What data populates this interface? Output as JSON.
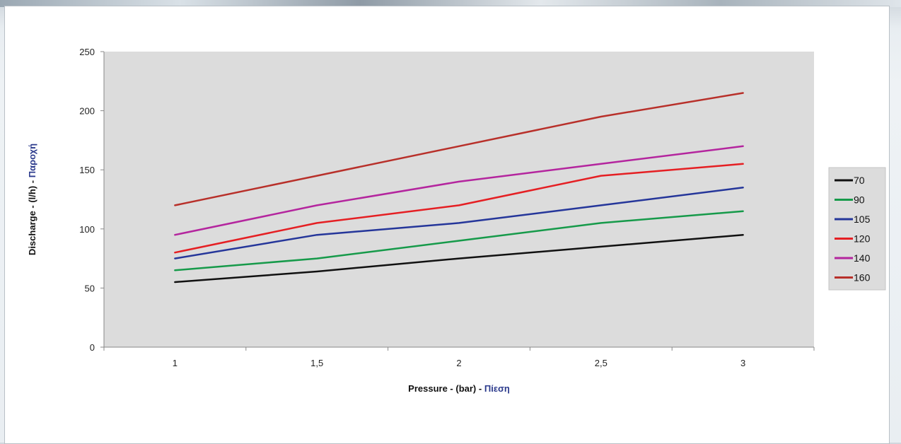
{
  "chart_data": {
    "type": "line",
    "title": "",
    "x": [
      "1",
      "1,5",
      "2",
      "2,5",
      "3"
    ],
    "xlabel": {
      "text": "Pressure - (bar) - ",
      "accent": "Πίεση"
    },
    "ylabel": {
      "text": "Discharge - (l/h) - ",
      "accent": "Παροχή"
    },
    "ylim": [
      0,
      250
    ],
    "yticks": [
      "0",
      "50",
      "100",
      "150",
      "200",
      "250"
    ],
    "grid": false,
    "plot_background": "#dcdcdc",
    "legend_position": "right",
    "accent_color": "#2b3a8c",
    "series": [
      {
        "name": "70",
        "color": "#111111",
        "values": [
          55,
          64,
          75,
          85,
          95
        ]
      },
      {
        "name": "90",
        "color": "#169a4a",
        "values": [
          65,
          75,
          90,
          105,
          115
        ]
      },
      {
        "name": "105",
        "color": "#25369a",
        "values": [
          75,
          95,
          105,
          120,
          135
        ]
      },
      {
        "name": "120",
        "color": "#e51f23",
        "values": [
          80,
          105,
          120,
          145,
          155
        ]
      },
      {
        "name": "140",
        "color": "#b4259e",
        "values": [
          95,
          120,
          140,
          155,
          170
        ]
      },
      {
        "name": "160",
        "color": "#b8302a",
        "values": [
          120,
          145,
          170,
          195,
          215
        ]
      }
    ]
  }
}
